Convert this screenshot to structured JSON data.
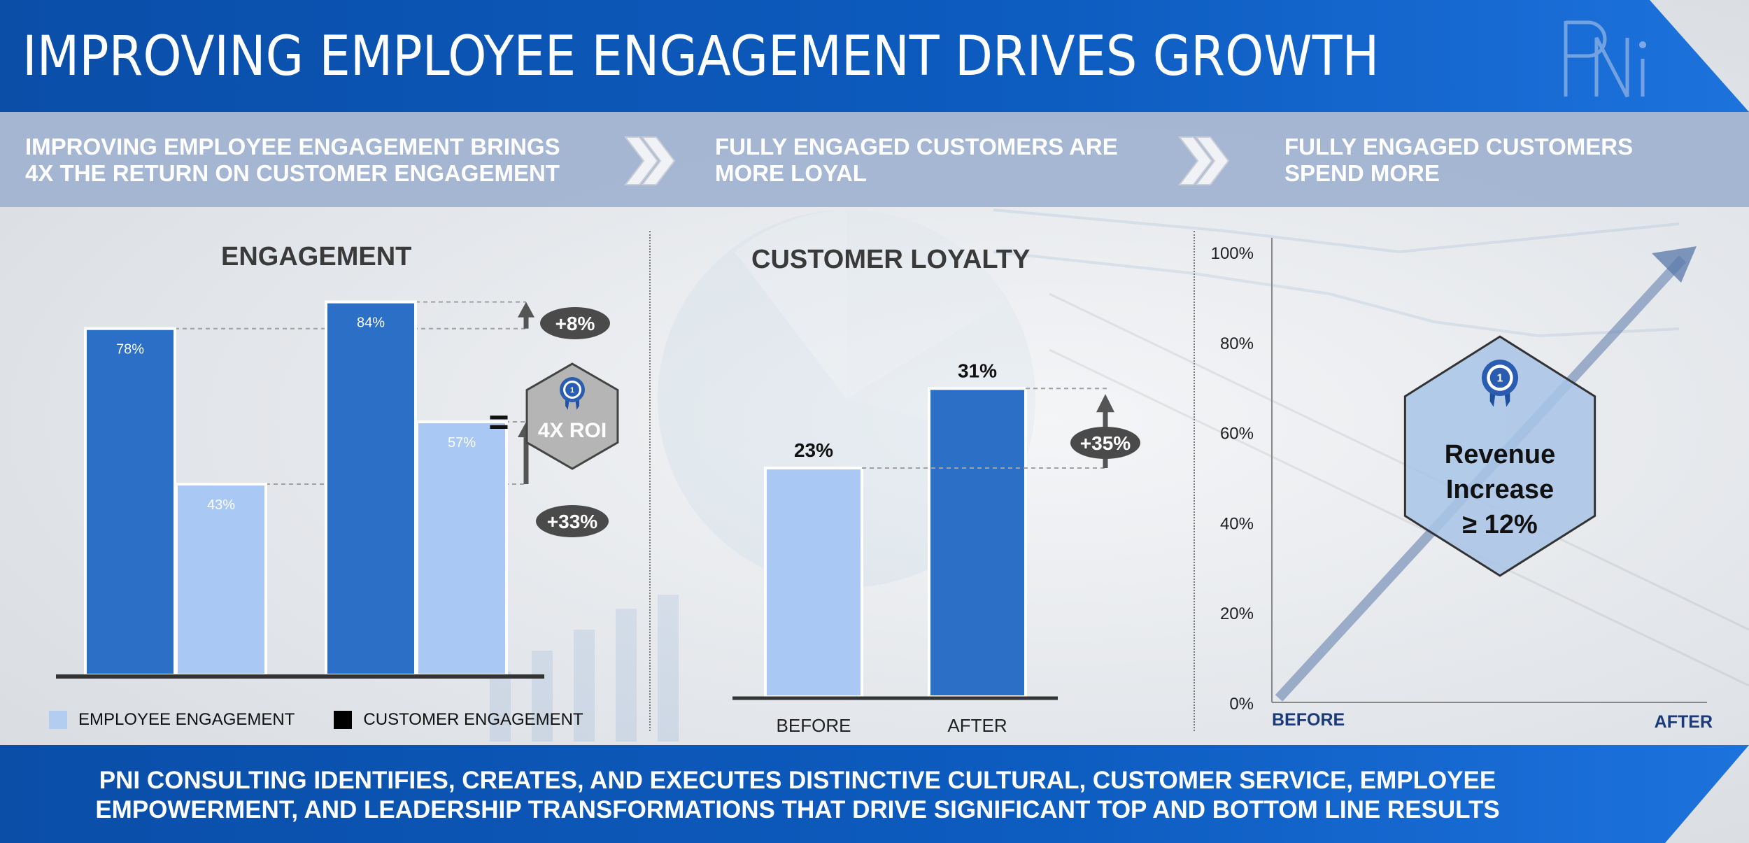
{
  "header": {
    "title": "IMPROVING EMPLOYEE ENGAGEMENT DRIVES GROWTH",
    "logo": "PNi"
  },
  "banner": {
    "steps": [
      "IMPROVING EMPLOYEE ENGAGEMENT BRINGS\n4X THE RETURN ON CUSTOMER ENGAGEMENT",
      "FULLY ENGAGED CUSTOMERS ARE\nMORE LOYAL",
      "FULLY ENGAGED CUSTOMERS\nSPEND MORE"
    ],
    "separator_icon": "double-chevron-right-icon"
  },
  "engagement": {
    "equals": "=",
    "badge_text": "4X ROI",
    "badge_icon": "award-ribbon-icon"
  },
  "loyalty": {},
  "revenue": {
    "badge_line1": "Revenue",
    "badge_line2": "Increase",
    "badge_line3": "≥ 12%",
    "badge_icon": "award-ribbon-icon"
  },
  "footer": {
    "text": "PNI CONSULTING IDENTIFIES, CREATES, AND EXECUTES DISTINCTIVE CULTURAL, CUSTOMER SERVICE, EMPLOYEE\nEMPOWERMENT, AND LEADERSHIP TRANSFORMATIONS THAT DRIVE SIGNIFICANT TOP AND BOTTOM LINE RESULTS"
  },
  "colors": {
    "header_blue": "#0b55b8",
    "dark_bar": "#2b6fc6",
    "light_bar": "#a9c8f4",
    "arrow": "#555555",
    "badge_grey": "#b8b8b8",
    "badge_blue": "#a8c4e6"
  },
  "chart_data": [
    {
      "type": "bar",
      "title": "ENGAGEMENT",
      "categories": [
        "",
        ""
      ],
      "series": [
        {
          "name": "EMPLOYEE ENGAGEMENT",
          "values": [
            78,
            84
          ],
          "data_labels": [
            "78%",
            "84%"
          ],
          "color": "#2b6fc6"
        },
        {
          "name": "CUSTOMER ENGAGEMENT",
          "values": [
            43,
            57
          ],
          "data_labels": [
            "43%",
            "57%"
          ],
          "color": "#a9c8f4"
        }
      ],
      "annotations": [
        "+8%",
        "+33%"
      ],
      "ylim": [
        0,
        100
      ],
      "legend": "bottom",
      "legend_entries": [
        "EMPLOYEE ENGAGEMENT",
        "CUSTOMER ENGAGEMENT"
      ]
    },
    {
      "type": "bar",
      "title": "CUSTOMER LOYALTY",
      "categories": [
        "BEFORE",
        "AFTER"
      ],
      "values": [
        23,
        31
      ],
      "data_labels": [
        "23%",
        "31%"
      ],
      "colors": [
        "#a9c8f4",
        "#2b6fc6"
      ],
      "annotations": [
        "+35%"
      ],
      "ylim": [
        0,
        37
      ]
    },
    {
      "type": "line",
      "title": "",
      "x": [
        "BEFORE",
        "AFTER"
      ],
      "y": [
        0,
        100
      ],
      "yticks": [
        "0%",
        "20%",
        "40%",
        "60%",
        "80%",
        "100%"
      ],
      "ylim": [
        0,
        100
      ],
      "annotations": [
        "Revenue Increase ≥ 12%"
      ],
      "grid": false
    }
  ]
}
